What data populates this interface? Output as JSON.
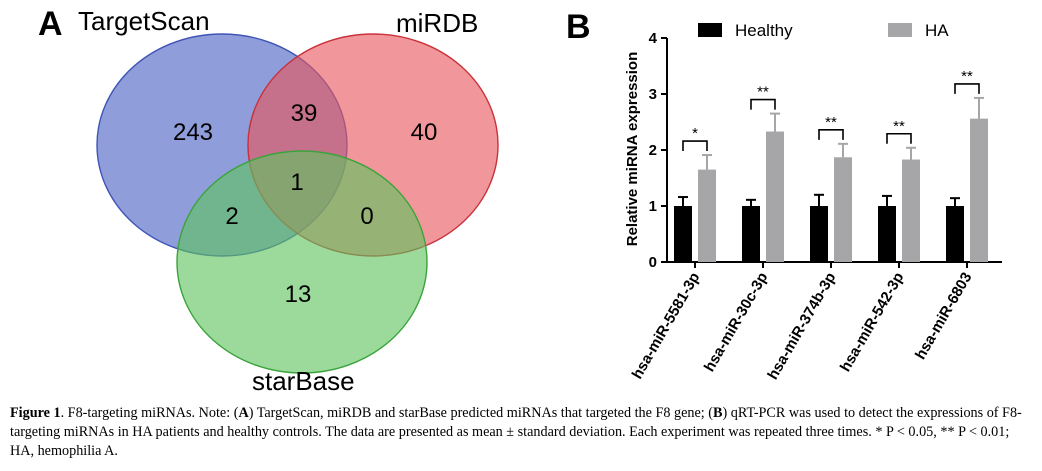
{
  "panel_a": {
    "label": "A",
    "sets": [
      {
        "name": "TargetScan",
        "color": "#5a6fc9"
      },
      {
        "name": "miRDB",
        "color": "#e8555c"
      },
      {
        "name": "starBase",
        "color": "#5fc45f"
      }
    ],
    "counts": {
      "targetscan_only": "243",
      "mirdb_only": "40",
      "starbase_only": "13",
      "targetscan_mirdb": "39",
      "targetscan_starbase": "2",
      "mirdb_starbase": "0",
      "all_three": "1"
    }
  },
  "panel_b": {
    "label": "B"
  },
  "chart_data": {
    "type": "bar",
    "ylabel": "Relative miRNA expression",
    "xlabel": "",
    "ylim": [
      0,
      4
    ],
    "yticks": [
      "0",
      "1",
      "2",
      "3",
      "4"
    ],
    "categories": [
      "hsa-miR-5581-3p",
      "hsa-miR-30c-3p",
      "hsa-miR-374b-3p",
      "hsa-miR-542-3p",
      "hsa-miR-6803"
    ],
    "series": [
      {
        "name": "Healthy",
        "color": "#000000",
        "values": [
          1.0,
          1.0,
          1.0,
          1.0,
          1.0
        ],
        "errors": [
          0.16,
          0.11,
          0.2,
          0.18,
          0.14
        ]
      },
      {
        "name": "HA",
        "color": "#a6a6a8",
        "values": [
          1.65,
          2.33,
          1.87,
          1.83,
          2.56
        ],
        "errors": [
          0.26,
          0.32,
          0.24,
          0.21,
          0.37
        ]
      }
    ],
    "significance": [
      "*",
      "**",
      "**",
      "**",
      "**"
    ],
    "legend_position": "top",
    "grid": false
  },
  "caption": {
    "fig_label": "Figure 1",
    "sep1": ". ",
    "gene": "F",
    "part1": "8-targeting miRNAs. Note: (",
    "a_label": "A",
    "part2": ") TargetScan, miRDB and starBase predicted miRNAs that targeted the F8 gene; (",
    "b_label": "B",
    "part3": ") qRT-PCR was used to detect the expressions of F8-targeting miRNAs in HA patients and healthy controls. The data are presented as mean ± standard deviation. Each experiment was repeated three times. * P < 0.05, ** P < 0.01; HA, hemophilia A."
  }
}
